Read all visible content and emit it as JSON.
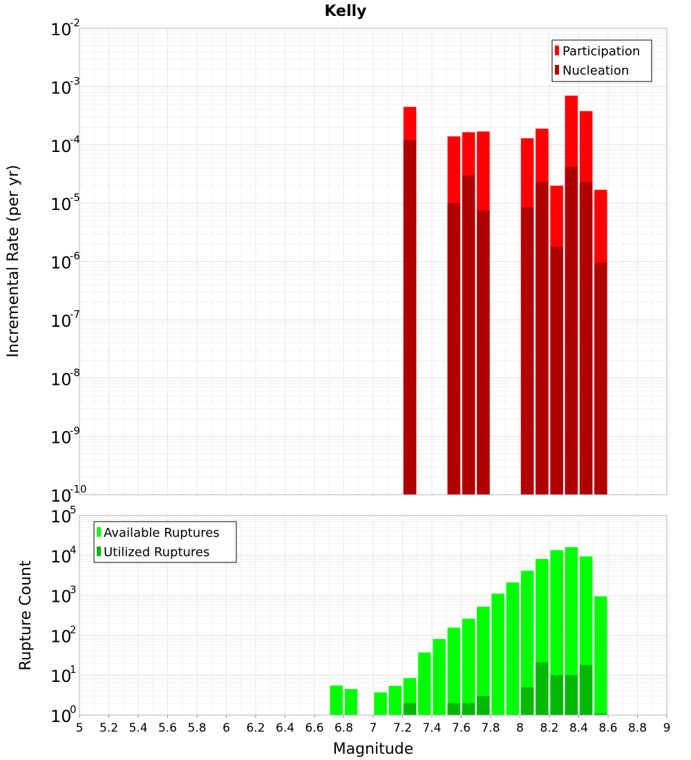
{
  "title": "Kelly",
  "chart_data": [
    {
      "type": "bar",
      "title": "Kelly",
      "xlabel": "Magnitude",
      "ylabel": "Incremental Rate (per yr)",
      "xlim": [
        5,
        9
      ],
      "ylim": [
        1e-10,
        0.01
      ],
      "yscale": "log",
      "grid": true,
      "legend_position": "top-right",
      "x": [
        7.25,
        7.55,
        7.65,
        7.75,
        8.05,
        8.15,
        8.25,
        8.35,
        8.45,
        8.55
      ],
      "series": [
        {
          "name": "Participation",
          "color": "#ff0000",
          "values": [
            0.00045,
            0.00014,
            0.000165,
            0.00017,
            0.00013,
            0.00019,
            2e-05,
            0.0007,
            0.00038,
            1.7e-05
          ]
        },
        {
          "name": "Nucleation",
          "color": "#b00000",
          "values": [
            0.00012,
            1e-05,
            3e-05,
            7.5e-06,
            8.5e-06,
            2.3e-05,
            1.8e-06,
            4.2e-05,
            2.3e-05,
            9.5e-07
          ]
        }
      ]
    },
    {
      "type": "bar",
      "xlabel": "Magnitude",
      "ylabel": "Rupture Count",
      "xlim": [
        5,
        9
      ],
      "ylim": [
        1,
        100000.0
      ],
      "yscale": "log",
      "grid": true,
      "legend_position": "top-left",
      "x": [
        6.75,
        6.85,
        7.05,
        7.15,
        7.25,
        7.35,
        7.45,
        7.55,
        7.65,
        7.75,
        7.85,
        7.95,
        8.05,
        8.15,
        8.25,
        8.35,
        8.45,
        8.55
      ],
      "series": [
        {
          "name": "Available Ruptures",
          "color": "#00ff00",
          "values": [
            5.5,
            4.5,
            3.7,
            5.4,
            8.5,
            37,
            80,
            155,
            260,
            520,
            1100,
            2100,
            4100,
            8100,
            13500,
            16000,
            9400,
            940
          ]
        },
        {
          "name": "Utilized Ruptures",
          "color": "#00b800",
          "values": [
            0,
            0,
            0,
            0,
            2,
            0,
            0,
            2,
            2,
            3,
            0,
            0,
            5,
            21,
            10,
            10,
            18,
            1.1
          ]
        }
      ]
    }
  ],
  "x_ticks": [
    "5",
    "5.2",
    "5.4",
    "5.6",
    "5.8",
    "6",
    "6.2",
    "6.4",
    "6.6",
    "6.8",
    "7",
    "7.2",
    "7.4",
    "7.6",
    "7.8",
    "8",
    "8.2",
    "8.4",
    "8.6",
    "8.8",
    "9"
  ],
  "top_y_ticks": [
    {
      "base": "10",
      "exp": "-2"
    },
    {
      "base": "10",
      "exp": "-3"
    },
    {
      "base": "10",
      "exp": "-4"
    },
    {
      "base": "10",
      "exp": "-5"
    },
    {
      "base": "10",
      "exp": "-6"
    },
    {
      "base": "10",
      "exp": "-7"
    },
    {
      "base": "10",
      "exp": "-8"
    },
    {
      "base": "10",
      "exp": "-9"
    },
    {
      "base": "10",
      "exp": "-10"
    }
  ],
  "bottom_y_ticks": [
    {
      "base": "10",
      "exp": "5"
    },
    {
      "base": "10",
      "exp": "4"
    },
    {
      "base": "10",
      "exp": "3"
    },
    {
      "base": "10",
      "exp": "2"
    },
    {
      "base": "10",
      "exp": "1"
    },
    {
      "base": "10",
      "exp": "0"
    }
  ]
}
